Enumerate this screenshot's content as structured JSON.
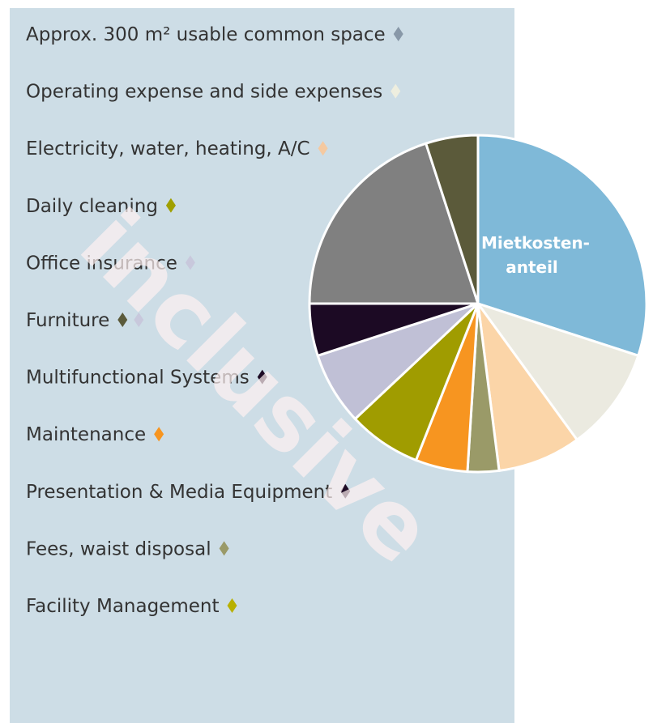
{
  "chart_data": {
    "type": "pie",
    "categories": [
      "Mietkosten-anteil",
      null,
      null,
      null,
      null,
      null,
      null,
      null,
      null,
      null
    ],
    "values": [
      30,
      10,
      8,
      3,
      5,
      7,
      7,
      5,
      20,
      5
    ],
    "colors": [
      "#7fb9d8",
      "#ebeae0",
      "#fbd5a8",
      "#9a9a68",
      "#f79520",
      "#a09c00",
      "#c0c0d6",
      "#1c0a24",
      "#808080",
      "#5b5a3a"
    ]
  },
  "list": {
    "items": [
      {
        "text": "Approx. 300 m² usable common space",
        "colors": [
          "#8898a8"
        ]
      },
      {
        "text": "Operating expense and side expenses",
        "colors": [
          "#eeeedf"
        ]
      },
      {
        "text": "Electricity, water, heating, A/C",
        "colors": [
          "#f5c9a0"
        ]
      },
      {
        "text": "Daily cleaning",
        "colors": [
          "#a0a000"
        ]
      },
      {
        "text": "Office insurance",
        "colors": [
          "#c8c8dc"
        ]
      },
      {
        "text": "Furniture",
        "colors": [
          "#5b5a3a",
          "#c8c8dc"
        ]
      },
      {
        "text": "Multifunctional Systems",
        "colors": [
          "#1c0a24"
        ]
      },
      {
        "text": "Maintenance",
        "colors": [
          "#f79520"
        ]
      },
      {
        "text": "Presentation & Media Equipment",
        "colors": [
          "#1c0a24"
        ]
      },
      {
        "text": "Fees, waist disposal",
        "colors": [
          "#9a9a68"
        ]
      },
      {
        "text": "Facility Management",
        "colors": [
          "#b8b000"
        ]
      }
    ]
  },
  "watermark": "inclusive"
}
